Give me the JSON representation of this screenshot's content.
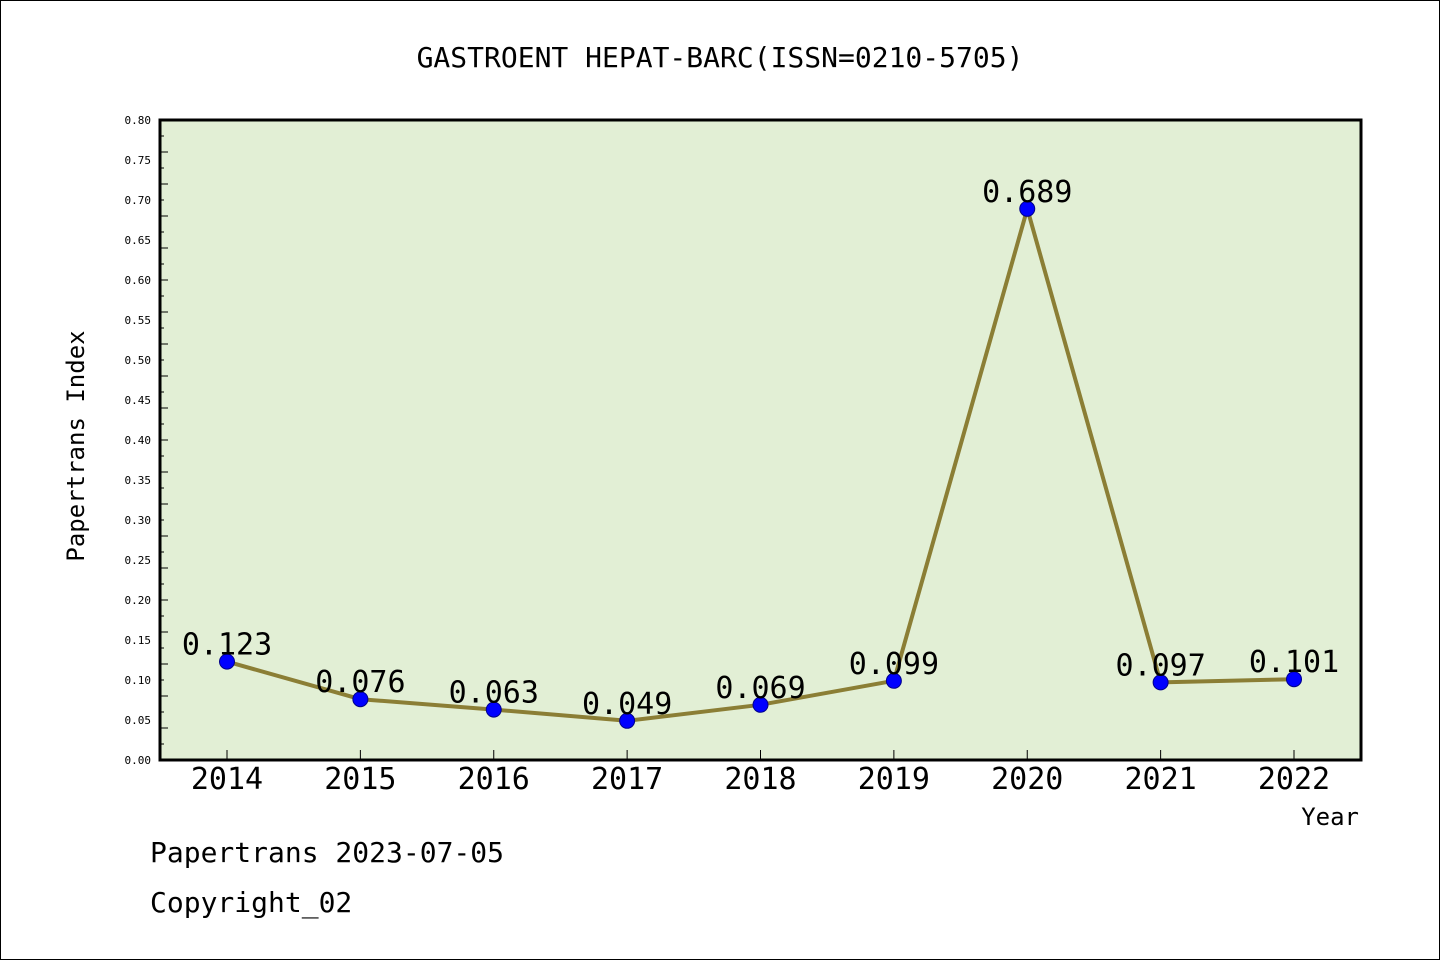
{
  "chart_data": {
    "type": "line",
    "title": "GASTROENT HEPAT-BARC(ISSN=0210-5705)",
    "xlabel": "Year",
    "ylabel": "Papertrans Index",
    "categories": [
      "2014",
      "2015",
      "2016",
      "2017",
      "2018",
      "2019",
      "2020",
      "2021",
      "2022"
    ],
    "series": [
      {
        "values": [
          0.123,
          0.076,
          0.063,
          0.049,
          0.069,
          0.099,
          0.689,
          0.097,
          0.101
        ],
        "data_labels": [
          "0.123",
          "0.076",
          "0.063",
          "0.049",
          "0.069",
          "0.099",
          "0.689",
          "0.097",
          "0.101"
        ]
      }
    ],
    "ylim": [
      0,
      0.8
    ],
    "yticks": [
      "0.00",
      "0.05",
      "0.10",
      "0.15",
      "0.20",
      "0.25",
      "0.30",
      "0.35",
      "0.40",
      "0.45",
      "0.50",
      "0.55",
      "0.60",
      "0.65",
      "0.70",
      "0.75",
      "0.80"
    ],
    "grid": false,
    "colors": {
      "plot_background": "#e2efd5",
      "line": "#8b7e35",
      "marker": "#0000ff",
      "marker_edge": "#00008b"
    }
  },
  "footer": {
    "source": "Papertrans 2023-07-05",
    "copyright": "Copyright_02"
  }
}
